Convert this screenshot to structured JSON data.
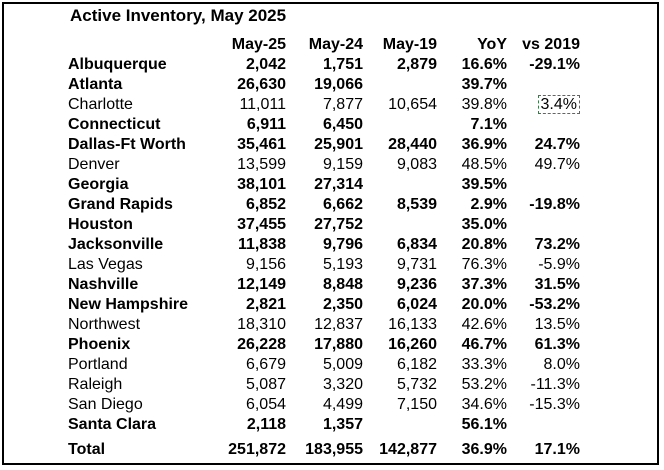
{
  "title": "Active Inventory, May 2025",
  "headers": [
    "",
    "May-25",
    "May-24",
    "May-19",
    "YoY",
    "vs 2019"
  ],
  "rows": [
    {
      "name": "Albuquerque",
      "may25": "2,042",
      "may24": "1,751",
      "may19": "2,879",
      "yoy": "16.6%",
      "vs2019": "-29.1%",
      "bold": true
    },
    {
      "name": "Atlanta",
      "may25": "26,630",
      "may24": "19,066",
      "may19": "",
      "yoy": "39.7%",
      "vs2019": "",
      "bold": true
    },
    {
      "name": "Charlotte",
      "may25": "11,011",
      "may24": "7,877",
      "may19": "10,654",
      "yoy": "39.8%",
      "vs2019": "3.4%",
      "bold": false,
      "highlight_vs2019": true
    },
    {
      "name": "Connecticut",
      "may25": "6,911",
      "may24": "6,450",
      "may19": "",
      "yoy": "7.1%",
      "vs2019": "",
      "bold": true
    },
    {
      "name": "Dallas-Ft Worth",
      "may25": "35,461",
      "may24": "25,901",
      "may19": "28,440",
      "yoy": "36.9%",
      "vs2019": "24.7%",
      "bold": true
    },
    {
      "name": "Denver",
      "may25": "13,599",
      "may24": "9,159",
      "may19": "9,083",
      "yoy": "48.5%",
      "vs2019": "49.7%",
      "bold": false
    },
    {
      "name": "Georgia",
      "may25": "38,101",
      "may24": "27,314",
      "may19": "",
      "yoy": "39.5%",
      "vs2019": "",
      "bold": true
    },
    {
      "name": "Grand Rapids",
      "may25": "6,852",
      "may24": "6,662",
      "may19": "8,539",
      "yoy": "2.9%",
      "vs2019": "-19.8%",
      "bold": true
    },
    {
      "name": "Houston",
      "may25": "37,455",
      "may24": "27,752",
      "may19": "",
      "yoy": "35.0%",
      "vs2019": "",
      "bold": true
    },
    {
      "name": "Jacksonville",
      "may25": "11,838",
      "may24": "9,796",
      "may19": "6,834",
      "yoy": "20.8%",
      "vs2019": "73.2%",
      "bold": true
    },
    {
      "name": "Las Vegas",
      "may25": "9,156",
      "may24": "5,193",
      "may19": "9,731",
      "yoy": "76.3%",
      "vs2019": "-5.9%",
      "bold": false
    },
    {
      "name": "Nashville",
      "may25": "12,149",
      "may24": "8,848",
      "may19": "9,236",
      "yoy": "37.3%",
      "vs2019": "31.5%",
      "bold": true
    },
    {
      "name": "New Hampshire",
      "may25": "2,821",
      "may24": "2,350",
      "may19": "6,024",
      "yoy": "20.0%",
      "vs2019": "-53.2%",
      "bold": true
    },
    {
      "name": "Northwest",
      "may25": "18,310",
      "may24": "12,837",
      "may19": "16,133",
      "yoy": "42.6%",
      "vs2019": "13.5%",
      "bold": false
    },
    {
      "name": "Phoenix",
      "may25": "26,228",
      "may24": "17,880",
      "may19": "16,260",
      "yoy": "46.7%",
      "vs2019": "61.3%",
      "bold": true
    },
    {
      "name": "Portland",
      "may25": "6,679",
      "may24": "5,009",
      "may19": "6,182",
      "yoy": "33.3%",
      "vs2019": "8.0%",
      "bold": false
    },
    {
      "name": "Raleigh",
      "may25": "5,087",
      "may24": "3,320",
      "may19": "5,732",
      "yoy": "53.2%",
      "vs2019": "-11.3%",
      "bold": false
    },
    {
      "name": "San Diego",
      "may25": "6,054",
      "may24": "4,499",
      "may19": "7,150",
      "yoy": "34.6%",
      "vs2019": "-15.3%",
      "bold": false
    },
    {
      "name": "Santa Clara",
      "may25": "2,118",
      "may24": "1,357",
      "may19": "",
      "yoy": "56.1%",
      "vs2019": "",
      "bold": true
    }
  ],
  "total": {
    "name": "Total",
    "may25": "251,872",
    "may24": "183,955",
    "may19": "142,877",
    "yoy": "36.9%",
    "vs2019": "17.1%"
  },
  "colors": {
    "highlight_border": "#3f7a4c",
    "frame": "#000000"
  }
}
